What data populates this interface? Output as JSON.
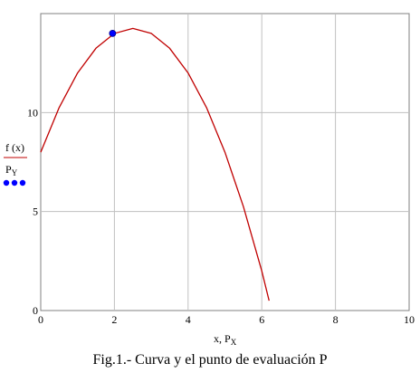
{
  "chart_data": {
    "type": "line",
    "title": "",
    "xlim": [
      0,
      10
    ],
    "ylim": [
      0,
      15
    ],
    "x_ticks": [
      "0",
      "2",
      "4",
      "6",
      "8",
      "10"
    ],
    "y_ticks": [
      "0",
      "5",
      "10"
    ],
    "grid": true,
    "xlabel": {
      "main": "x, P",
      "sub": "X"
    },
    "ylabel": {
      "line1": "f (x)",
      "line2_main": "P",
      "line2_sub": "Y"
    },
    "series": [
      {
        "name": "f (x)",
        "kind": "curve",
        "color": "#c00000",
        "x": [
          0,
          0.5,
          1,
          1.5,
          2,
          2.5,
          3,
          3.5,
          4,
          4.5,
          5,
          5.5,
          6,
          6.2
        ],
        "y": [
          8.0,
          10.25,
          12.0,
          13.25,
          14.0,
          14.25,
          14.0,
          13.25,
          12.0,
          10.25,
          8.0,
          5.25,
          2.0,
          0.5
        ]
      },
      {
        "name": "P",
        "kind": "point",
        "color": "#0000ff",
        "x": [
          1.95
        ],
        "y": [
          14.0
        ]
      }
    ],
    "legend_markers": {
      "line_color": "#c00000",
      "dot_color": "#0000ff"
    }
  },
  "caption": "Fig.1.- Curva y el punto de evaluación P"
}
